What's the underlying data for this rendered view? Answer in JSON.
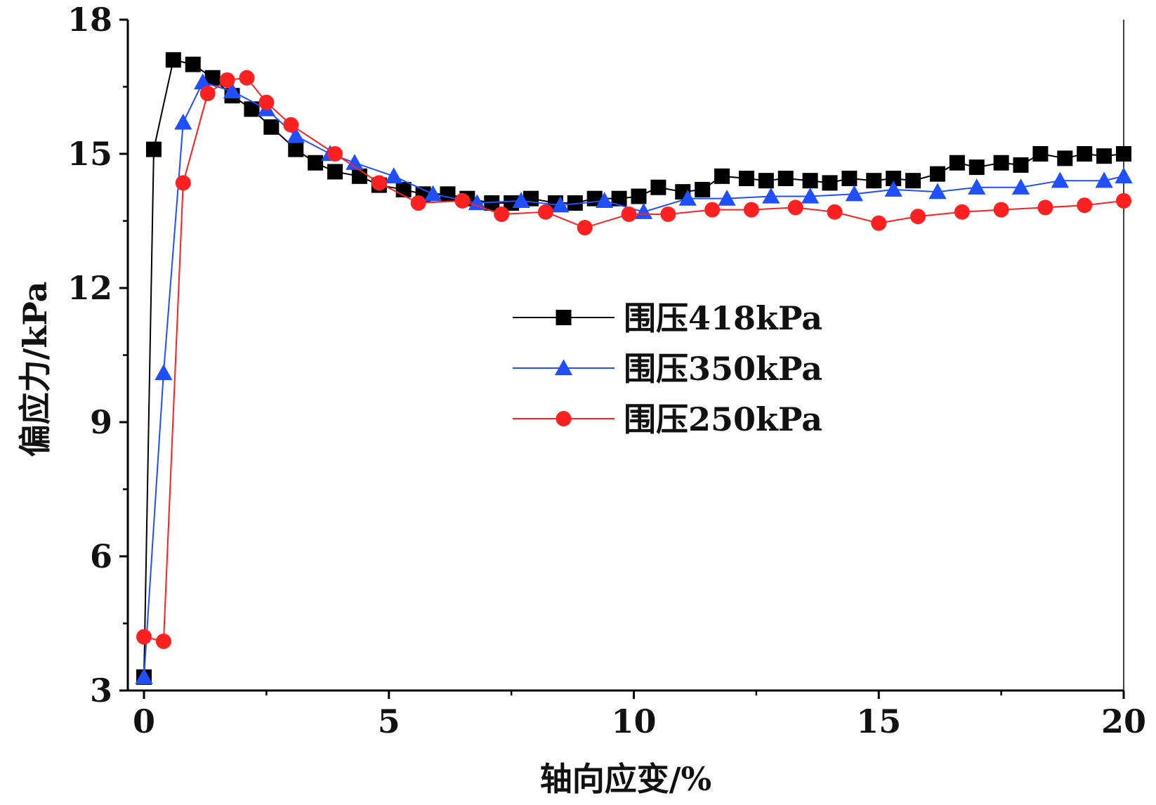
{
  "chart_data": {
    "type": "line",
    "title": "",
    "xlabel": "轴向应变/%",
    "ylabel": "偏应力/kPa",
    "xlim": [
      -0.3,
      20
    ],
    "ylim": [
      3,
      18
    ],
    "x_ticks": [
      0,
      5,
      10,
      15,
      20
    ],
    "x_tick_labels": [
      "0",
      "5",
      "10",
      "15",
      "20"
    ],
    "y_ticks": [
      3,
      6,
      9,
      12,
      15,
      18
    ],
    "y_tick_labels": [
      "3",
      "6",
      "9",
      "12",
      "15",
      "18"
    ],
    "grid": false,
    "legend_position": "center-right",
    "series": [
      {
        "name": "围压418kPa",
        "color": "#000000",
        "marker": "square",
        "x": [
          0,
          0.2,
          0.6,
          1.0,
          1.4,
          1.8,
          2.2,
          2.6,
          3.1,
          3.5,
          3.9,
          4.4,
          4.8,
          5.3,
          5.7,
          6.2,
          6.6,
          7.1,
          7.5,
          7.9,
          8.4,
          8.8,
          9.2,
          9.7,
          10.1,
          10.5,
          11.0,
          11.4,
          11.8,
          12.3,
          12.7,
          13.1,
          13.6,
          14.0,
          14.4,
          14.9,
          15.3,
          15.7,
          16.2,
          16.6,
          17.0,
          17.5,
          17.9,
          18.3,
          18.8,
          19.2,
          19.6,
          20.0
        ],
        "values": [
          3.3,
          15.1,
          17.1,
          17.0,
          16.7,
          16.3,
          16.0,
          15.6,
          15.1,
          14.8,
          14.6,
          14.5,
          14.3,
          14.2,
          14.1,
          14.1,
          14.0,
          13.9,
          13.9,
          14.0,
          13.9,
          13.9,
          14.0,
          14.0,
          14.05,
          14.25,
          14.15,
          14.2,
          14.5,
          14.45,
          14.4,
          14.45,
          14.4,
          14.35,
          14.45,
          14.4,
          14.45,
          14.4,
          14.55,
          14.8,
          14.7,
          14.8,
          14.75,
          15.0,
          14.9,
          15.0,
          14.95,
          15.0
        ]
      },
      {
        "name": "围压350kPa",
        "color": "#1f4fff",
        "marker": "triangle",
        "x": [
          0,
          0.4,
          0.8,
          1.2,
          1.8,
          2.5,
          3.1,
          3.8,
          4.3,
          5.1,
          5.9,
          6.8,
          7.7,
          8.5,
          9.4,
          10.2,
          11.1,
          11.9,
          12.8,
          13.6,
          14.5,
          15.3,
          16.2,
          17.0,
          17.9,
          18.7,
          19.6,
          20.0
        ],
        "values": [
          3.3,
          10.1,
          15.7,
          16.6,
          16.4,
          16.0,
          15.4,
          15.0,
          14.8,
          14.5,
          14.1,
          13.9,
          13.95,
          13.85,
          13.95,
          13.7,
          14.0,
          14.0,
          14.05,
          14.05,
          14.1,
          14.2,
          14.15,
          14.25,
          14.25,
          14.4,
          14.4,
          14.5
        ]
      },
      {
        "name": "围压250kPa",
        "color": "#ff2020",
        "marker": "circle",
        "x": [
          0,
          0.4,
          0.8,
          1.3,
          1.7,
          2.1,
          2.5,
          3.0,
          3.9,
          4.8,
          5.6,
          6.5,
          7.3,
          8.2,
          9.0,
          9.9,
          10.7,
          11.6,
          12.4,
          13.3,
          14.1,
          15.0,
          15.8,
          16.7,
          17.5,
          18.4,
          19.2,
          20.0
        ],
        "values": [
          4.2,
          4.1,
          14.35,
          16.35,
          16.65,
          16.7,
          16.15,
          15.65,
          15.0,
          14.35,
          13.9,
          13.95,
          13.65,
          13.7,
          13.35,
          13.65,
          13.65,
          13.75,
          13.75,
          13.8,
          13.7,
          13.45,
          13.6,
          13.7,
          13.75,
          13.8,
          13.85,
          13.95
        ]
      }
    ]
  }
}
